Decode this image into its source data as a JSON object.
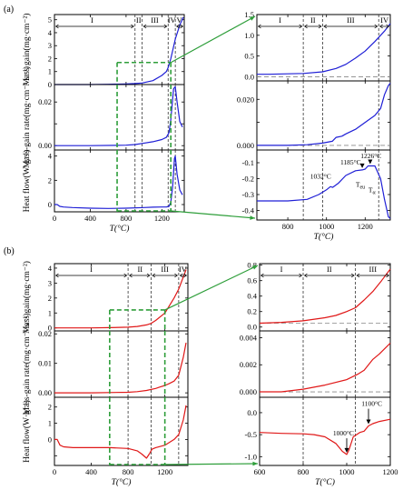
{
  "figure": {
    "panel_labels": [
      "(a)",
      "(b)"
    ]
  },
  "colors": {
    "a": "#1f1fd6",
    "b": "#e01818",
    "guide": "#2e9e3a",
    "frame": "#000000",
    "dashed": "#333333"
  },
  "chart_data": [
    {
      "id": "a-left",
      "type": "line",
      "xlabel": "T(°C)",
      "xlim": [
        0,
        1450
      ],
      "xticks": [
        0,
        400,
        800,
        1200
      ],
      "xtick_labels": [
        "0",
        "400",
        "800",
        "1200"
      ],
      "vlines": [
        900,
        980,
        1270,
        1350
      ],
      "regions": [
        {
          "label": "I",
          "x": 420
        },
        {
          "label": "II",
          "x": 940
        },
        {
          "label": "III",
          "x": 1120
        },
        {
          "label": "IV",
          "x": 1310
        },
        {
          "label": "V",
          "x": 1395
        }
      ],
      "inset_box": {
        "x": [
          700,
          1300
        ]
      },
      "subplots": [
        {
          "ylabel": "Mass gain(mg·cm⁻²)",
          "ylim": [
            0,
            5.4
          ],
          "yticks": [
            0,
            1,
            2,
            3,
            4,
            5
          ],
          "ytick_labels": [
            "0",
            "1",
            "2",
            "3",
            "4",
            "5"
          ],
          "inset_box_y": [
            0,
            1.7
          ],
          "x": [
            0,
            200,
            400,
            600,
            800,
            900,
            980,
            1100,
            1200,
            1250,
            1270,
            1300,
            1350,
            1400,
            1440
          ],
          "y": [
            0.0,
            0.0,
            0.0,
            0.02,
            0.05,
            0.08,
            0.12,
            0.3,
            0.7,
            1.0,
            1.3,
            2.0,
            3.5,
            4.6,
            5.2
          ]
        },
        {
          "ylabel": "Mass-gain rate(mg·cm⁻²·s⁻¹)",
          "ylim": [
            -0.002,
            0.028
          ],
          "yticks": [
            0.0,
            0.01,
            0.02
          ],
          "ytick_labels": [
            "0.00",
            "",
            "0.02"
          ],
          "inset_box_y": [
            -0.002,
            0.028
          ],
          "x": [
            0,
            400,
            800,
            900,
            980,
            1100,
            1200,
            1250,
            1280,
            1300,
            1330,
            1350,
            1370,
            1400,
            1430
          ],
          "y": [
            0.0,
            0.0,
            0.0002,
            0.0005,
            0.001,
            0.0018,
            0.0028,
            0.0038,
            0.006,
            0.012,
            0.026,
            0.027,
            0.02,
            0.011,
            0.0085
          ]
        },
        {
          "ylabel": "Heat flow(W·g⁻¹)",
          "ylim": [
            -0.6,
            4.5
          ],
          "yticks": [
            0,
            2,
            4
          ],
          "ytick_labels": [
            "0",
            "2",
            "4"
          ],
          "inset_box_y": [
            -0.6,
            4.5
          ],
          "x": [
            0,
            30,
            60,
            100,
            200,
            400,
            600,
            800,
            1000,
            1100,
            1200,
            1250,
            1280,
            1300,
            1320,
            1340,
            1350,
            1370,
            1400,
            1430
          ],
          "y": [
            0.0,
            0.0,
            -0.15,
            -0.2,
            -0.25,
            -0.3,
            -0.32,
            -0.3,
            -0.25,
            -0.22,
            -0.2,
            -0.2,
            -0.15,
            0.2,
            1.5,
            3.8,
            4.0,
            2.5,
            1.2,
            0.8
          ]
        }
      ]
    },
    {
      "id": "a-right",
      "type": "line",
      "xlabel": "T(°C)",
      "xlim": [
        640,
        1330
      ],
      "xticks": [
        800,
        1000,
        1200
      ],
      "xtick_labels": [
        "800",
        "1000",
        "1200"
      ],
      "vlines": [
        880,
        980,
        1270
      ],
      "regions": [
        {
          "label": "I",
          "x": 760
        },
        {
          "label": "II",
          "x": 930
        },
        {
          "label": "III",
          "x": 1125
        },
        {
          "label": "IV",
          "x": 1300
        }
      ],
      "subplots": [
        {
          "ylabel": "",
          "ylim": [
            -0.1,
            1.5
          ],
          "yticks": [
            0.0,
            0.5,
            1.0,
            1.5
          ],
          "ytick_labels": [
            "0.0",
            "0.5",
            "1.0",
            "1.5"
          ],
          "hline": 0.0,
          "x": [
            640,
            700,
            800,
            880,
            980,
            1050,
            1100,
            1150,
            1200,
            1250,
            1300,
            1330
          ],
          "y": [
            0.06,
            0.06,
            0.07,
            0.08,
            0.12,
            0.2,
            0.3,
            0.45,
            0.62,
            0.85,
            1.1,
            1.28
          ]
        },
        {
          "ylabel": "",
          "ylim": [
            -0.002,
            0.028
          ],
          "yticks": [
            0.0,
            0.01,
            0.02
          ],
          "ytick_labels": [
            "0.000",
            "",
            "0.020"
          ],
          "hline": 0.0,
          "x": [
            640,
            800,
            900,
            980,
            1030,
            1050,
            1080,
            1100,
            1150,
            1200,
            1250,
            1280,
            1300,
            1320,
            1330
          ],
          "y": [
            0.0,
            0.0,
            0.0003,
            0.001,
            0.0018,
            0.0035,
            0.004,
            0.005,
            0.007,
            0.01,
            0.013,
            0.016,
            0.022,
            0.026,
            0.027
          ]
        },
        {
          "ylabel": "",
          "ylim": [
            -0.46,
            -0.02
          ],
          "yticks": [
            -0.4,
            -0.3,
            -0.2,
            -0.1
          ],
          "ytick_labels": [
            "-0.4",
            "-0.3",
            "-0.2",
            "-0.1"
          ],
          "x": [
            640,
            700,
            800,
            900,
            960,
            1000,
            1020,
            1032,
            1060,
            1100,
            1150,
            1185,
            1200,
            1215,
            1226,
            1250,
            1280,
            1300,
            1320,
            1330
          ],
          "y": [
            -0.34,
            -0.34,
            -0.34,
            -0.33,
            -0.3,
            -0.27,
            -0.25,
            -0.255,
            -0.23,
            -0.18,
            -0.15,
            -0.145,
            -0.14,
            -0.12,
            -0.12,
            -0.12,
            -0.2,
            -0.33,
            -0.44,
            -0.45
          ],
          "annotations": [
            {
              "text": "1032°C",
              "x": 1032,
              "y": -0.255,
              "arrow": false,
              "tx": 970,
              "ty": -0.2
            },
            {
              "text": "1185°C",
              "x": 1185,
              "y": -0.145,
              "arrow": true,
              "tx": 1125,
              "ty": -0.11
            },
            {
              "text": "1226°C",
              "x": 1226,
              "y": -0.12,
              "arrow": true,
              "tx": 1230,
              "ty": -0.07
            },
            {
              "text": "T",
              "sub": "eu",
              "x": 1185,
              "y": -0.185,
              "arrow": false,
              "tx": 1175,
              "ty": -0.25
            },
            {
              "text": "T",
              "sub": "α",
              "x": 1226,
              "y": -0.185,
              "arrow": false,
              "tx": 1235,
              "ty": -0.285
            }
          ]
        }
      ]
    },
    {
      "id": "b-left",
      "type": "line",
      "xlabel": "T(°C)",
      "xlim": [
        0,
        1450
      ],
      "xticks": [
        0,
        400,
        800,
        1200
      ],
      "xtick_labels": [
        "0",
        "400",
        "800",
        "1200"
      ],
      "vlines": [
        800,
        1050,
        1350
      ],
      "regions": [
        {
          "label": "I",
          "x": 400
        },
        {
          "label": "II",
          "x": 930
        },
        {
          "label": "III",
          "x": 1200
        },
        {
          "label": "IV",
          "x": 1395
        }
      ],
      "inset_box": {
        "x": [
          600,
          1200
        ]
      },
      "subplots": [
        {
          "ylabel": "Mass gain(mg·cm⁻²)",
          "ylim": [
            -0.2,
            4.3
          ],
          "yticks": [
            0,
            1,
            2,
            3,
            4
          ],
          "ytick_labels": [
            "0",
            "1",
            "2",
            "3",
            "4"
          ],
          "inset_box_y": [
            -0.2,
            1.2
          ],
          "x": [
            0,
            200,
            400,
            600,
            800,
            900,
            1000,
            1050,
            1100,
            1200,
            1300,
            1350,
            1400,
            1430
          ],
          "y": [
            0.0,
            0.0,
            0.0,
            0.02,
            0.05,
            0.1,
            0.2,
            0.3,
            0.5,
            1.0,
            2.0,
            2.6,
            3.4,
            3.9
          ]
        },
        {
          "ylabel": "Mass-gain rate(mg·cm⁻²·s⁻¹)",
          "ylim": [
            -0.0015,
            0.021
          ],
          "yticks": [
            0.0,
            0.01,
            0.02
          ],
          "ytick_labels": [
            "0.00",
            "0.01",
            "0.02"
          ],
          "inset_box_y": [
            -0.0015,
            0.021
          ],
          "x": [
            0,
            400,
            800,
            900,
            1000,
            1100,
            1150,
            1200,
            1250,
            1300,
            1350,
            1400,
            1430
          ],
          "y": [
            0.0,
            0.0,
            0.0002,
            0.0004,
            0.0008,
            0.0015,
            0.002,
            0.0025,
            0.0032,
            0.004,
            0.006,
            0.012,
            0.017
          ]
        },
        {
          "ylabel": "Heat flow(W·g⁻¹)",
          "ylim": [
            -1.6,
            2.6
          ],
          "yticks": [
            -1,
            0,
            1,
            2
          ],
          "ytick_labels": [
            "",
            "0",
            "1",
            "2"
          ],
          "inset_box_y": [
            -1.6,
            2.6
          ],
          "x": [
            0,
            30,
            60,
            100,
            200,
            400,
            600,
            800,
            900,
            950,
            1000,
            1030,
            1060,
            1100,
            1200,
            1300,
            1350,
            1400,
            1430
          ],
          "y": [
            0.0,
            0.0,
            -0.35,
            -0.45,
            -0.5,
            -0.5,
            -0.5,
            -0.55,
            -0.7,
            -0.9,
            -1.15,
            -0.9,
            -0.6,
            -0.5,
            -0.35,
            0.0,
            0.3,
            1.2,
            2.1
          ]
        }
      ]
    },
    {
      "id": "b-right",
      "type": "line",
      "xlabel": "T(°C)",
      "xlim": [
        600,
        1200
      ],
      "xticks": [
        600,
        800,
        1000,
        1200
      ],
      "xtick_labels": [
        "600",
        "800",
        "1000",
        "1200"
      ],
      "vlines": [
        800,
        1040
      ],
      "regions": [
        {
          "label": "I",
          "x": 700
        },
        {
          "label": "II",
          "x": 920
        },
        {
          "label": "III",
          "x": 1120
        }
      ],
      "subplots": [
        {
          "ylabel": "",
          "ylim": [
            -0.05,
            0.82
          ],
          "yticks": [
            0.0,
            0.2,
            0.4,
            0.6,
            0.8
          ],
          "ytick_labels": [
            "0.0",
            "0.2",
            "0.4",
            "0.6",
            "0.8"
          ],
          "hline": 0.05,
          "x": [
            600,
            700,
            800,
            900,
            950,
            1000,
            1040,
            1080,
            1120,
            1160,
            1200
          ],
          "y": [
            0.05,
            0.06,
            0.08,
            0.12,
            0.15,
            0.2,
            0.25,
            0.35,
            0.46,
            0.6,
            0.75
          ]
        },
        {
          "ylabel": "",
          "ylim": [
            -0.0004,
            0.0045
          ],
          "yticks": [
            0.0,
            0.002,
            0.004
          ],
          "ytick_labels": [
            "0.000",
            "0.002",
            "0.004"
          ],
          "hline": 0.0,
          "x": [
            600,
            700,
            800,
            900,
            1000,
            1050,
            1080,
            1100,
            1120,
            1150,
            1200
          ],
          "y": [
            0.0,
            0.0,
            0.0002,
            0.0005,
            0.0009,
            0.0013,
            0.0016,
            0.002,
            0.0024,
            0.0028,
            0.0036
          ]
        },
        {
          "ylabel": "",
          "ylim": [
            -1.2,
            0.35
          ],
          "yticks": [
            -1.0,
            -0.5,
            0.0
          ],
          "ytick_labels": [
            "-1.0",
            "-0.5",
            "0.0"
          ],
          "x": [
            600,
            700,
            800,
            850,
            900,
            950,
            980,
            1000,
            1010,
            1030,
            1060,
            1080,
            1100,
            1120,
            1150,
            1200
          ],
          "y": [
            -0.45,
            -0.47,
            -0.48,
            -0.5,
            -0.55,
            -0.7,
            -0.88,
            -0.95,
            -0.85,
            -0.55,
            -0.45,
            -0.42,
            -0.3,
            -0.25,
            -0.2,
            -0.15
          ],
          "annotations": [
            {
              "text": "1000°C",
              "x": 1000,
              "y": -0.95,
              "arrow": true,
              "tx": 985,
              "ty": -0.52
            },
            {
              "text": "1100°C",
              "x": 1100,
              "y": -0.3,
              "arrow": true,
              "tx": 1115,
              "ty": 0.15
            }
          ]
        }
      ]
    }
  ]
}
